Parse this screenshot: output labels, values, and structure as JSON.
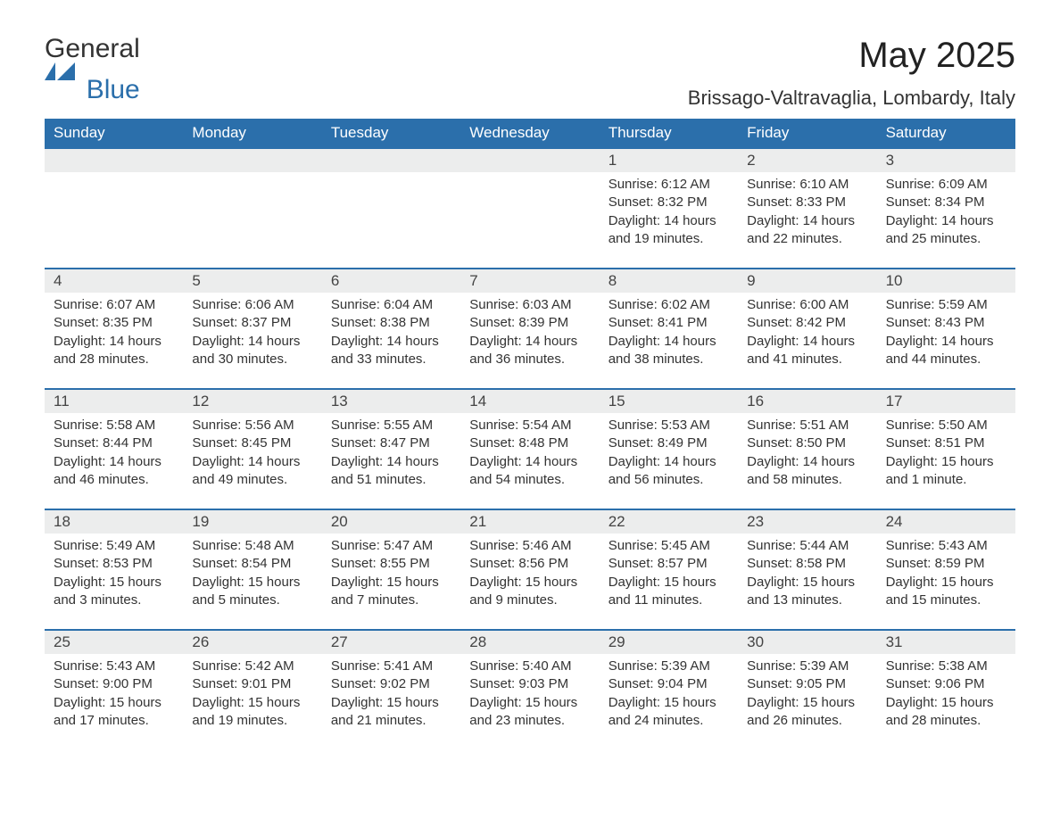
{
  "brand": {
    "name_primary": "General",
    "name_accent": "Blue"
  },
  "title": {
    "month": "May 2025",
    "location": "Brissago-Valtravaglia, Lombardy, Italy"
  },
  "colors": {
    "header_bg": "#2b6fab",
    "header_text": "#ffffff",
    "daynum_bg": "#eceded",
    "row_border": "#2b6fab",
    "body_text": "#333333",
    "page_bg": "#ffffff",
    "accent": "#2b6fab"
  },
  "typography": {
    "title_fontsize_pt": 30,
    "location_fontsize_pt": 16,
    "weekday_fontsize_pt": 13,
    "daynum_fontsize_pt": 13,
    "body_fontsize_pt": 11,
    "font_family": "Segoe UI / Arial"
  },
  "calendar": {
    "weekdays": [
      "Sunday",
      "Monday",
      "Tuesday",
      "Wednesday",
      "Thursday",
      "Friday",
      "Saturday"
    ],
    "first_day_column_index": 4,
    "days": [
      {
        "n": "1",
        "sunrise": "Sunrise: 6:12 AM",
        "sunset": "Sunset: 8:32 PM",
        "daylight": "Daylight: 14 hours and 19 minutes."
      },
      {
        "n": "2",
        "sunrise": "Sunrise: 6:10 AM",
        "sunset": "Sunset: 8:33 PM",
        "daylight": "Daylight: 14 hours and 22 minutes."
      },
      {
        "n": "3",
        "sunrise": "Sunrise: 6:09 AM",
        "sunset": "Sunset: 8:34 PM",
        "daylight": "Daylight: 14 hours and 25 minutes."
      },
      {
        "n": "4",
        "sunrise": "Sunrise: 6:07 AM",
        "sunset": "Sunset: 8:35 PM",
        "daylight": "Daylight: 14 hours and 28 minutes."
      },
      {
        "n": "5",
        "sunrise": "Sunrise: 6:06 AM",
        "sunset": "Sunset: 8:37 PM",
        "daylight": "Daylight: 14 hours and 30 minutes."
      },
      {
        "n": "6",
        "sunrise": "Sunrise: 6:04 AM",
        "sunset": "Sunset: 8:38 PM",
        "daylight": "Daylight: 14 hours and 33 minutes."
      },
      {
        "n": "7",
        "sunrise": "Sunrise: 6:03 AM",
        "sunset": "Sunset: 8:39 PM",
        "daylight": "Daylight: 14 hours and 36 minutes."
      },
      {
        "n": "8",
        "sunrise": "Sunrise: 6:02 AM",
        "sunset": "Sunset: 8:41 PM",
        "daylight": "Daylight: 14 hours and 38 minutes."
      },
      {
        "n": "9",
        "sunrise": "Sunrise: 6:00 AM",
        "sunset": "Sunset: 8:42 PM",
        "daylight": "Daylight: 14 hours and 41 minutes."
      },
      {
        "n": "10",
        "sunrise": "Sunrise: 5:59 AM",
        "sunset": "Sunset: 8:43 PM",
        "daylight": "Daylight: 14 hours and 44 minutes."
      },
      {
        "n": "11",
        "sunrise": "Sunrise: 5:58 AM",
        "sunset": "Sunset: 8:44 PM",
        "daylight": "Daylight: 14 hours and 46 minutes."
      },
      {
        "n": "12",
        "sunrise": "Sunrise: 5:56 AM",
        "sunset": "Sunset: 8:45 PM",
        "daylight": "Daylight: 14 hours and 49 minutes."
      },
      {
        "n": "13",
        "sunrise": "Sunrise: 5:55 AM",
        "sunset": "Sunset: 8:47 PM",
        "daylight": "Daylight: 14 hours and 51 minutes."
      },
      {
        "n": "14",
        "sunrise": "Sunrise: 5:54 AM",
        "sunset": "Sunset: 8:48 PM",
        "daylight": "Daylight: 14 hours and 54 minutes."
      },
      {
        "n": "15",
        "sunrise": "Sunrise: 5:53 AM",
        "sunset": "Sunset: 8:49 PM",
        "daylight": "Daylight: 14 hours and 56 minutes."
      },
      {
        "n": "16",
        "sunrise": "Sunrise: 5:51 AM",
        "sunset": "Sunset: 8:50 PM",
        "daylight": "Daylight: 14 hours and 58 minutes."
      },
      {
        "n": "17",
        "sunrise": "Sunrise: 5:50 AM",
        "sunset": "Sunset: 8:51 PM",
        "daylight": "Daylight: 15 hours and 1 minute."
      },
      {
        "n": "18",
        "sunrise": "Sunrise: 5:49 AM",
        "sunset": "Sunset: 8:53 PM",
        "daylight": "Daylight: 15 hours and 3 minutes."
      },
      {
        "n": "19",
        "sunrise": "Sunrise: 5:48 AM",
        "sunset": "Sunset: 8:54 PM",
        "daylight": "Daylight: 15 hours and 5 minutes."
      },
      {
        "n": "20",
        "sunrise": "Sunrise: 5:47 AM",
        "sunset": "Sunset: 8:55 PM",
        "daylight": "Daylight: 15 hours and 7 minutes."
      },
      {
        "n": "21",
        "sunrise": "Sunrise: 5:46 AM",
        "sunset": "Sunset: 8:56 PM",
        "daylight": "Daylight: 15 hours and 9 minutes."
      },
      {
        "n": "22",
        "sunrise": "Sunrise: 5:45 AM",
        "sunset": "Sunset: 8:57 PM",
        "daylight": "Daylight: 15 hours and 11 minutes."
      },
      {
        "n": "23",
        "sunrise": "Sunrise: 5:44 AM",
        "sunset": "Sunset: 8:58 PM",
        "daylight": "Daylight: 15 hours and 13 minutes."
      },
      {
        "n": "24",
        "sunrise": "Sunrise: 5:43 AM",
        "sunset": "Sunset: 8:59 PM",
        "daylight": "Daylight: 15 hours and 15 minutes."
      },
      {
        "n": "25",
        "sunrise": "Sunrise: 5:43 AM",
        "sunset": "Sunset: 9:00 PM",
        "daylight": "Daylight: 15 hours and 17 minutes."
      },
      {
        "n": "26",
        "sunrise": "Sunrise: 5:42 AM",
        "sunset": "Sunset: 9:01 PM",
        "daylight": "Daylight: 15 hours and 19 minutes."
      },
      {
        "n": "27",
        "sunrise": "Sunrise: 5:41 AM",
        "sunset": "Sunset: 9:02 PM",
        "daylight": "Daylight: 15 hours and 21 minutes."
      },
      {
        "n": "28",
        "sunrise": "Sunrise: 5:40 AM",
        "sunset": "Sunset: 9:03 PM",
        "daylight": "Daylight: 15 hours and 23 minutes."
      },
      {
        "n": "29",
        "sunrise": "Sunrise: 5:39 AM",
        "sunset": "Sunset: 9:04 PM",
        "daylight": "Daylight: 15 hours and 24 minutes."
      },
      {
        "n": "30",
        "sunrise": "Sunrise: 5:39 AM",
        "sunset": "Sunset: 9:05 PM",
        "daylight": "Daylight: 15 hours and 26 minutes."
      },
      {
        "n": "31",
        "sunrise": "Sunrise: 5:38 AM",
        "sunset": "Sunset: 9:06 PM",
        "daylight": "Daylight: 15 hours and 28 minutes."
      }
    ]
  }
}
